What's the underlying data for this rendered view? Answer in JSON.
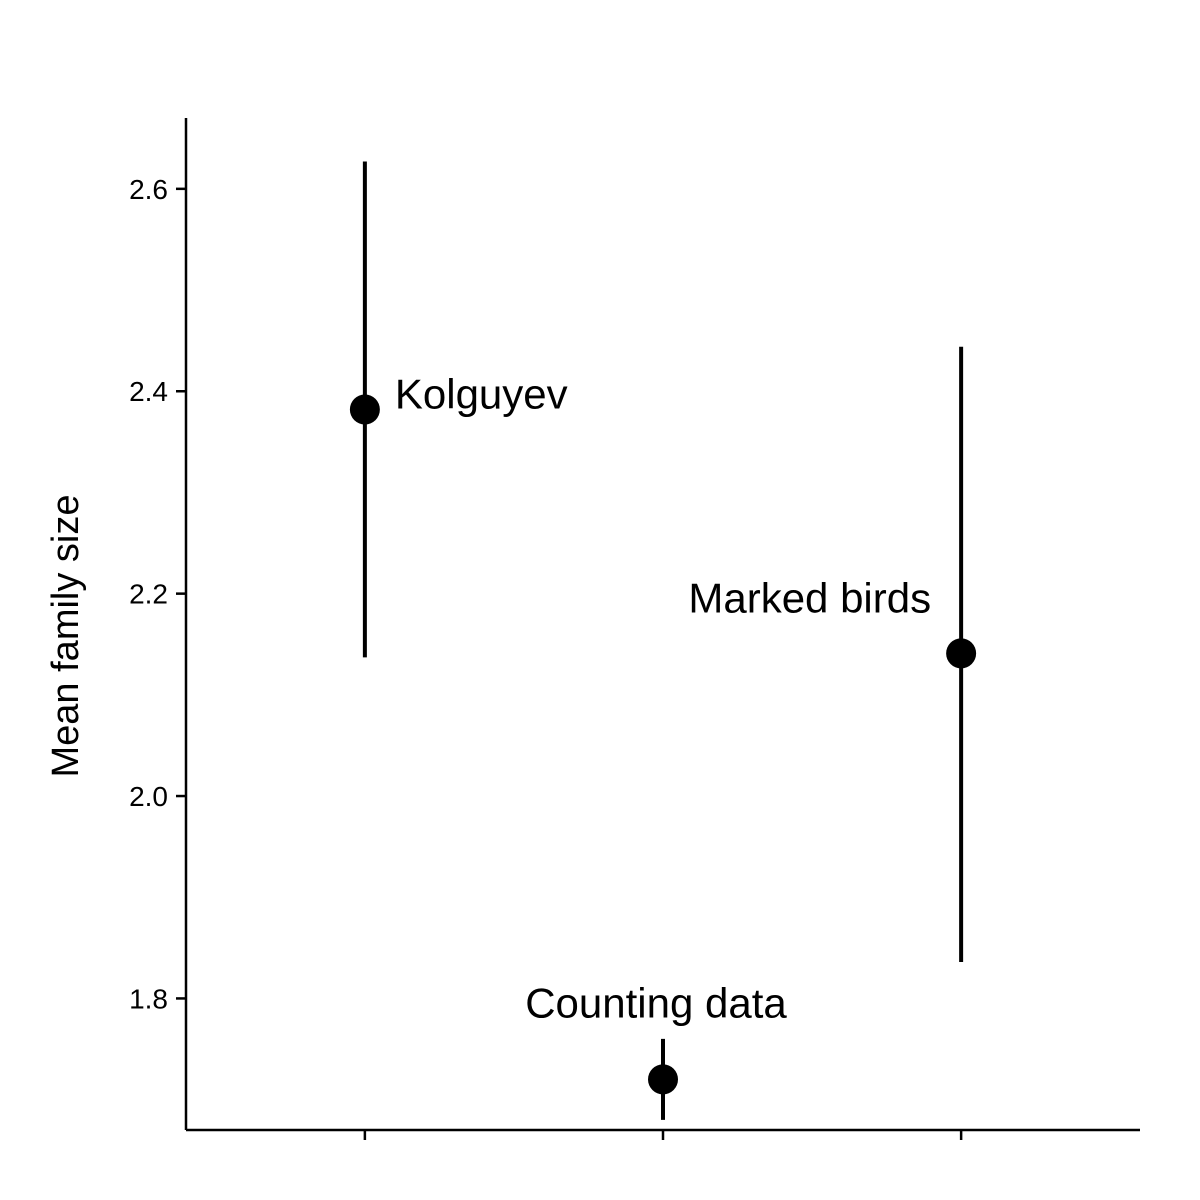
{
  "chart_data": {
    "type": "scatter",
    "title": "",
    "xlabel": "",
    "ylabel": "Mean family size",
    "ylim": [
      1.67,
      2.67
    ],
    "yticks": [
      1.8,
      2.0,
      2.2,
      2.4,
      2.6
    ],
    "ytick_labels": [
      "1.8",
      "2.0",
      "2.2",
      "2.4",
      "2.6"
    ],
    "x_positions": [
      1,
      2,
      3
    ],
    "xlim": [
      0.4,
      3.6
    ],
    "grid": false,
    "legend": "none",
    "color": "#000000",
    "points": [
      {
        "label": "Kolguyev",
        "x": 1,
        "y": 2.382,
        "lower": 2.137,
        "upper": 2.627,
        "label_side": "right"
      },
      {
        "label": "Counting data",
        "x": 2,
        "y": 1.72,
        "lower": 1.68,
        "upper": 1.76,
        "label_side": "above"
      },
      {
        "label": "Marked birds",
        "x": 3,
        "y": 2.141,
        "lower": 1.836,
        "upper": 2.444,
        "label_side": "above-left"
      }
    ]
  }
}
